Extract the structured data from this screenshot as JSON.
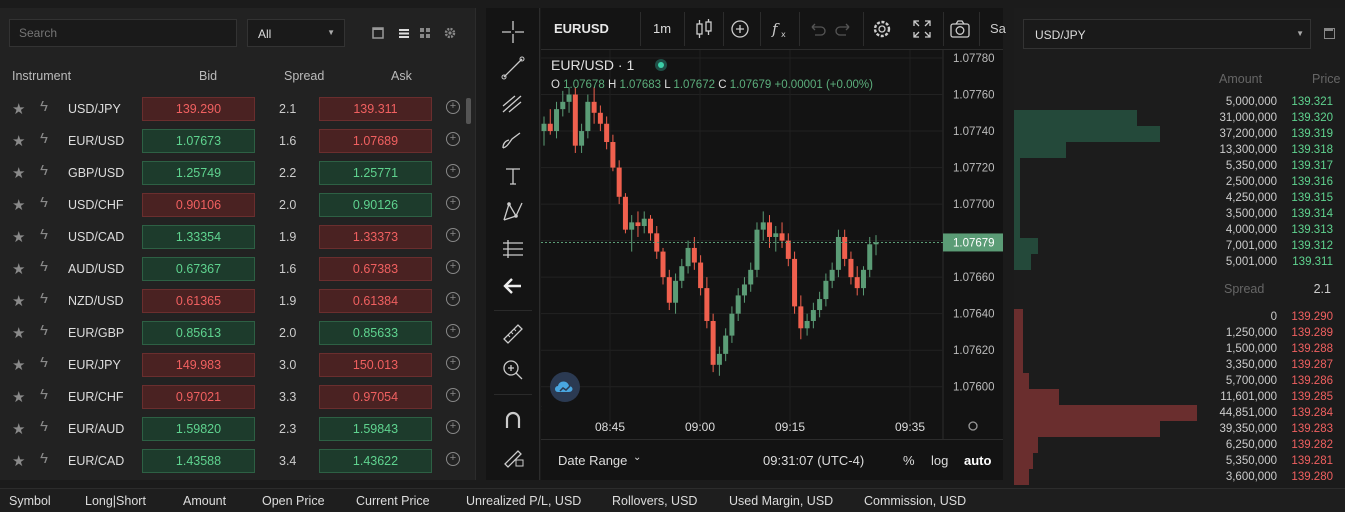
{
  "watchlist": {
    "search_placeholder": "Search",
    "filter_value": "All",
    "headers": {
      "instrument": "Instrument",
      "bid": "Bid",
      "spread": "Spread",
      "ask": "Ask"
    },
    "rows": [
      {
        "symbol": "USD/JPY",
        "bid": "139.290",
        "bid_dir": "down",
        "spread": "2.1",
        "ask": "139.311",
        "ask_dir": "down"
      },
      {
        "symbol": "EUR/USD",
        "bid": "1.07673",
        "bid_dir": "up",
        "spread": "1.6",
        "ask": "1.07689",
        "ask_dir": "down"
      },
      {
        "symbol": "GBP/USD",
        "bid": "1.25749",
        "bid_dir": "up",
        "spread": "2.2",
        "ask": "1.25771",
        "ask_dir": "up"
      },
      {
        "symbol": "USD/CHF",
        "bid": "0.90106",
        "bid_dir": "down",
        "spread": "2.0",
        "ask": "0.90126",
        "ask_dir": "up"
      },
      {
        "symbol": "USD/CAD",
        "bid": "1.33354",
        "bid_dir": "up",
        "spread": "1.9",
        "ask": "1.33373",
        "ask_dir": "down"
      },
      {
        "symbol": "AUD/USD",
        "bid": "0.67367",
        "bid_dir": "up",
        "spread": "1.6",
        "ask": "0.67383",
        "ask_dir": "down"
      },
      {
        "symbol": "NZD/USD",
        "bid": "0.61365",
        "bid_dir": "down",
        "spread": "1.9",
        "ask": "0.61384",
        "ask_dir": "down"
      },
      {
        "symbol": "EUR/GBP",
        "bid": "0.85613",
        "bid_dir": "up",
        "spread": "2.0",
        "ask": "0.85633",
        "ask_dir": "up"
      },
      {
        "symbol": "EUR/JPY",
        "bid": "149.983",
        "bid_dir": "down",
        "spread": "3.0",
        "ask": "150.013",
        "ask_dir": "down"
      },
      {
        "symbol": "EUR/CHF",
        "bid": "0.97021",
        "bid_dir": "down",
        "spread": "3.3",
        "ask": "0.97054",
        "ask_dir": "down"
      },
      {
        "symbol": "EUR/AUD",
        "bid": "1.59820",
        "bid_dir": "up",
        "spread": "2.3",
        "ask": "1.59843",
        "ask_dir": "up"
      },
      {
        "symbol": "EUR/CAD",
        "bid": "1.43588",
        "bid_dir": "up",
        "spread": "3.4",
        "ask": "1.43622",
        "ask_dir": "up"
      }
    ]
  },
  "chart_toolbar": {
    "symbol": "EURUSD",
    "timeframe": "1m",
    "extra": "Sa"
  },
  "chart_legend": {
    "title": "EUR/USD · 1",
    "o_label": "O",
    "o": "1.07678",
    "h_label": "H",
    "h": "1.07683",
    "l_label": "L",
    "l": "1.07672",
    "c_label": "C",
    "c": "1.07679",
    "change": "+0.00001 (+0.00%)"
  },
  "chart_bottom": {
    "date_range": "Date Range",
    "time": "09:31:07 (UTC-4)",
    "percent": "%",
    "log": "log",
    "auto": "auto"
  },
  "chart_data": {
    "type": "candlestick",
    "symbol": "EUR/USD",
    "interval": "1",
    "ylim": [
      1.0759,
      1.0778
    ],
    "y_ticks": [
      "1.07780",
      "1.07760",
      "1.07740",
      "1.07720",
      "1.07700",
      "1.07680",
      "1.07660",
      "1.07640",
      "1.07620",
      "1.07600"
    ],
    "x_ticks": [
      "08:45",
      "09:00",
      "09:15",
      "09:35"
    ],
    "last_price": "1.07679",
    "up_color": "#5b9c76",
    "down_color": "#f0604e",
    "candles": [
      [
        1.0774,
        1.07748,
        1.07732,
        1.07744
      ],
      [
        1.07744,
        1.07752,
        1.07738,
        1.0774
      ],
      [
        1.0774,
        1.07756,
        1.07736,
        1.07752
      ],
      [
        1.07752,
        1.07762,
        1.07748,
        1.07756
      ],
      [
        1.07756,
        1.07764,
        1.0775,
        1.0776
      ],
      [
        1.0776,
        1.07764,
        1.07728,
        1.07732
      ],
      [
        1.07732,
        1.07744,
        1.07728,
        1.0774
      ],
      [
        1.0774,
        1.0776,
        1.07736,
        1.07756
      ],
      [
        1.07756,
        1.07764,
        1.07744,
        1.0775
      ],
      [
        1.0775,
        1.07754,
        1.0774,
        1.07744
      ],
      [
        1.07744,
        1.07748,
        1.0773,
        1.07734
      ],
      [
        1.07734,
        1.07738,
        1.07718,
        1.0772
      ],
      [
        1.0772,
        1.07724,
        1.077,
        1.07704
      ],
      [
        1.07704,
        1.07706,
        1.07684,
        1.07686
      ],
      [
        1.07686,
        1.07694,
        1.07674,
        1.0769
      ],
      [
        1.0769,
        1.07696,
        1.07682,
        1.07688
      ],
      [
        1.07688,
        1.07696,
        1.07684,
        1.07692
      ],
      [
        1.07692,
        1.07694,
        1.0768,
        1.07684
      ],
      [
        1.07684,
        1.07688,
        1.0767,
        1.07674
      ],
      [
        1.07674,
        1.07676,
        1.07656,
        1.0766
      ],
      [
        1.0766,
        1.07664,
        1.07642,
        1.07646
      ],
      [
        1.07646,
        1.07662,
        1.0764,
        1.07658
      ],
      [
        1.07658,
        1.0767,
        1.07654,
        1.07666
      ],
      [
        1.07666,
        1.0768,
        1.07662,
        1.07676
      ],
      [
        1.07676,
        1.07682,
        1.07664,
        1.07668
      ],
      [
        1.07668,
        1.07672,
        1.0765,
        1.07654
      ],
      [
        1.07654,
        1.0766,
        1.07632,
        1.07636
      ],
      [
        1.07636,
        1.0764,
        1.07608,
        1.07612
      ],
      [
        1.07612,
        1.07622,
        1.07606,
        1.07618
      ],
      [
        1.07618,
        1.07632,
        1.07614,
        1.07628
      ],
      [
        1.07628,
        1.07644,
        1.07624,
        1.0764
      ],
      [
        1.0764,
        1.07654,
        1.07636,
        1.0765
      ],
      [
        1.0765,
        1.0766,
        1.07646,
        1.07656
      ],
      [
        1.07656,
        1.07668,
        1.07652,
        1.07664
      ],
      [
        1.07664,
        1.0769,
        1.0766,
        1.07686
      ],
      [
        1.07686,
        1.07696,
        1.0768,
        1.0769
      ],
      [
        1.0769,
        1.07694,
        1.07676,
        1.07682
      ],
      [
        1.07682,
        1.07688,
        1.07674,
        1.07684
      ],
      [
        1.07684,
        1.0769,
        1.07676,
        1.0768
      ],
      [
        1.0768,
        1.07684,
        1.07666,
        1.0767
      ],
      [
        1.0767,
        1.07674,
        1.0764,
        1.07644
      ],
      [
        1.07644,
        1.0765,
        1.07626,
        1.07632
      ],
      [
        1.07632,
        1.0764,
        1.07628,
        1.07636
      ],
      [
        1.07636,
        1.07646,
        1.07632,
        1.07642
      ],
      [
        1.07642,
        1.07652,
        1.07638,
        1.07648
      ],
      [
        1.07648,
        1.07662,
        1.07644,
        1.07658
      ],
      [
        1.07658,
        1.07668,
        1.07654,
        1.07664
      ],
      [
        1.07664,
        1.07686,
        1.0766,
        1.07682
      ],
      [
        1.07682,
        1.07686,
        1.07666,
        1.0767
      ],
      [
        1.0767,
        1.07674,
        1.07656,
        1.0766
      ],
      [
        1.0766,
        1.07666,
        1.0765,
        1.07654
      ],
      [
        1.07654,
        1.07666,
        1.0765,
        1.07664
      ],
      [
        1.07664,
        1.07682,
        1.0766,
        1.07678
      ],
      [
        1.07678,
        1.07683,
        1.07672,
        1.07679
      ]
    ]
  },
  "orderbook": {
    "pair": "USD/JPY",
    "headers": {
      "amount": "Amount",
      "price": "Price"
    },
    "asks": [
      {
        "amount": "5,000,000",
        "price": "139.321",
        "depth": 0.0
      },
      {
        "amount": "31,000,000",
        "price": "139.320",
        "depth": 0.57
      },
      {
        "amount": "37,200,000",
        "price": "139.319",
        "depth": 0.68
      },
      {
        "amount": "13,300,000",
        "price": "139.318",
        "depth": 0.24
      },
      {
        "amount": "5,350,000",
        "price": "139.317",
        "depth": 0.03
      },
      {
        "amount": "2,500,000",
        "price": "139.316",
        "depth": 0.03
      },
      {
        "amount": "4,250,000",
        "price": "139.315",
        "depth": 0.03
      },
      {
        "amount": "3,500,000",
        "price": "139.314",
        "depth": 0.03
      },
      {
        "amount": "4,000,000",
        "price": "139.313",
        "depth": 0.03
      },
      {
        "amount": "7,001,000",
        "price": "139.312",
        "depth": 0.11
      },
      {
        "amount": "5,001,000",
        "price": "139.311",
        "depth": 0.08
      }
    ],
    "spread_label": "Spread",
    "spread_value": "2.1",
    "bids": [
      {
        "amount": "0",
        "price": "139.290",
        "depth": 0.04
      },
      {
        "amount": "1,250,000",
        "price": "139.289",
        "depth": 0.04
      },
      {
        "amount": "1,500,000",
        "price": "139.288",
        "depth": 0.04
      },
      {
        "amount": "3,350,000",
        "price": "139.287",
        "depth": 0.04
      },
      {
        "amount": "5,700,000",
        "price": "139.286",
        "depth": 0.07
      },
      {
        "amount": "11,601,000",
        "price": "139.285",
        "depth": 0.21
      },
      {
        "amount": "44,851,000",
        "price": "139.284",
        "depth": 0.85
      },
      {
        "amount": "39,350,000",
        "price": "139.283",
        "depth": 0.68
      },
      {
        "amount": "6,250,000",
        "price": "139.282",
        "depth": 0.11
      },
      {
        "amount": "5,350,000",
        "price": "139.281",
        "depth": 0.09
      },
      {
        "amount": "3,600,000",
        "price": "139.280",
        "depth": 0.07
      }
    ]
  },
  "positions_header": [
    "Symbol",
    "Long|Short",
    "Amount",
    "Open Price",
    "Current Price",
    "Unrealized P/L, USD",
    "Rollovers, USD",
    "Used Margin, USD",
    "Commission, USD"
  ]
}
